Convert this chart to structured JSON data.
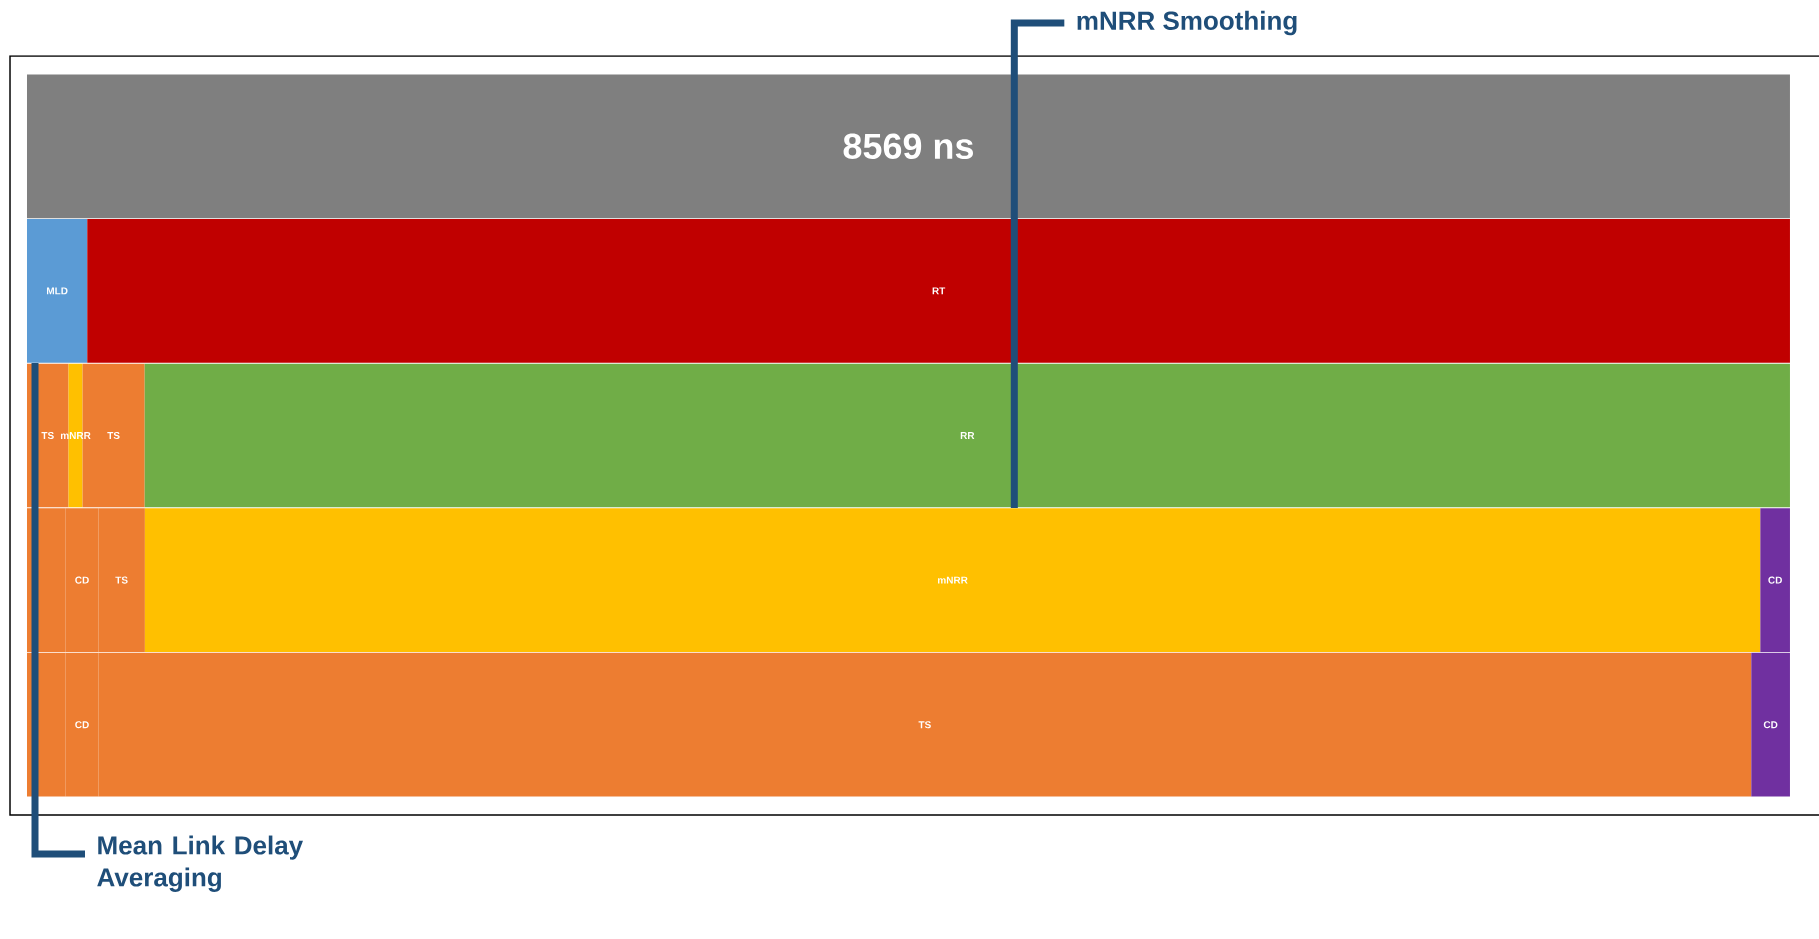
{
  "chart_data": {
    "type": "bar",
    "orientation": "horizontal",
    "stacked": true,
    "categories": [
      null,
      null,
      null,
      null,
      null
    ],
    "xlim": [
      0,
      8569
    ],
    "series": [
      {
        "color": "#7f7f7f",
        "values": [
          8569,
          null,
          null,
          null,
          null
        ],
        "value_labels": [
          "8569 ns",
          null,
          null,
          null,
          null
        ]
      },
      {
        "name": "MLD",
        "color": "#5b9bd5",
        "values": [
          null,
          293,
          null,
          null,
          null
        ]
      },
      {
        "name": "RT",
        "color": "#c00000",
        "values": [
          null,
          8276,
          null,
          null,
          null
        ]
      },
      {
        "name": "TS",
        "color": "#ed7d31",
        "values": [
          null,
          null,
          202,
          null,
          null
        ]
      },
      {
        "name": "mNRR",
        "color": "#ffc000",
        "values": [
          null,
          null,
          68,
          null,
          null
        ]
      },
      {
        "name": "TS",
        "color": "#ed7d31",
        "values": [
          null,
          null,
          302,
          null,
          null
        ]
      },
      {
        "name": "RR",
        "color": "#70ad47",
        "values": [
          null,
          null,
          7997,
          null,
          null
        ]
      },
      {
        "color": "#ed7d31",
        "values": [
          null,
          null,
          null,
          188,
          null
        ]
      },
      {
        "name": "CD",
        "color": "#ed7d31",
        "values": [
          null,
          null,
          null,
          159,
          null
        ]
      },
      {
        "name": "TS",
        "color": "#ed7d31",
        "values": [
          null,
          null,
          null,
          226,
          null
        ]
      },
      {
        "name": "mNRR",
        "color": "#ffc000",
        "values": [
          null,
          null,
          null,
          7852,
          null
        ]
      },
      {
        "name": "CD",
        "color": "#7030a0",
        "values": [
          null,
          null,
          null,
          144,
          null
        ]
      },
      {
        "color": "#ed7d31",
        "values": [
          null,
          null,
          null,
          null,
          188
        ]
      },
      {
        "name": "CD",
        "color": "#ed7d31",
        "values": [
          null,
          null,
          null,
          null,
          159
        ]
      },
      {
        "name": "TS",
        "color": "#ed7d31",
        "values": [
          null,
          null,
          null,
          null,
          8034
        ]
      },
      {
        "name": "CD",
        "color": "#7030a0",
        "values": [
          null,
          null,
          null,
          null,
          188
        ]
      }
    ],
    "annotations": [
      "mNRR Smoothing",
      "Mean Link Delay Averaging"
    ]
  }
}
